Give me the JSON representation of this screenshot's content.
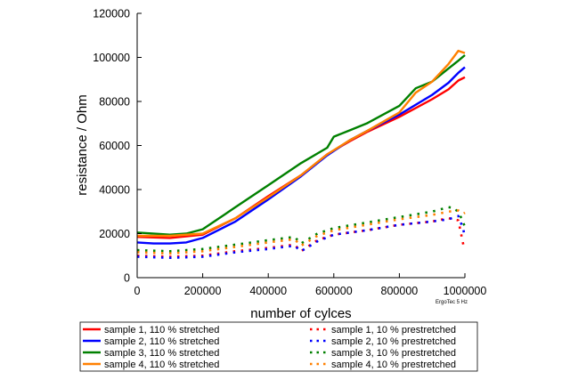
{
  "chart_data": {
    "type": "line",
    "xlabel": "number of cylces",
    "ylabel": "resistance / Ohm",
    "annotation": "ErgoTec 5 Hz",
    "xlim": [
      0,
      1000000
    ],
    "ylim": [
      0,
      120000
    ],
    "xticks": [
      0,
      200000,
      400000,
      600000,
      800000,
      1000000
    ],
    "yticks": [
      0,
      20000,
      40000,
      60000,
      80000,
      100000,
      120000
    ],
    "xtick_labels": [
      "0",
      "200000",
      "400000",
      "600000",
      "800000",
      "1000000"
    ],
    "ytick_labels": [
      "0",
      "20000",
      "40000",
      "60000",
      "80000",
      "100000",
      "120000"
    ],
    "grid": false,
    "legend_position": "bottom",
    "series": [
      {
        "name": "sample 1, 110 % stretched",
        "color": "#ff0000",
        "style": "solid",
        "x": [
          0,
          100000,
          200000,
          300000,
          400000,
          500000,
          580000,
          650000,
          700000,
          800000,
          900000,
          950000,
          980000,
          1000000
        ],
        "y": [
          18500,
          18000,
          19500,
          27000,
          37000,
          46500,
          56000,
          62000,
          66000,
          73000,
          81000,
          85500,
          89500,
          91000
        ]
      },
      {
        "name": "sample 2, 110 % stretched",
        "color": "#0000ff",
        "style": "solid",
        "x": [
          0,
          50000,
          100000,
          150000,
          200000,
          300000,
          400000,
          500000,
          580000,
          650000,
          700000,
          800000,
          900000,
          950000,
          980000,
          1000000
        ],
        "y": [
          16000,
          15500,
          15500,
          16000,
          18000,
          25500,
          35500,
          46000,
          55500,
          62500,
          66500,
          74000,
          83000,
          88500,
          93000,
          95500
        ]
      },
      {
        "name": "sample 3, 110 % stretched",
        "color": "#008000",
        "style": "solid",
        "x": [
          0,
          100000,
          150000,
          200000,
          300000,
          400000,
          500000,
          580000,
          600000,
          650000,
          700000,
          800000,
          850000,
          900000,
          950000,
          980000,
          1000000
        ],
        "y": [
          20500,
          19500,
          20000,
          22000,
          32000,
          42000,
          52000,
          59000,
          64000,
          67000,
          70000,
          78000,
          86000,
          89000,
          95000,
          98500,
          101000
        ]
      },
      {
        "name": "sample 4, 110 % stretched",
        "color": "#ff8000",
        "style": "solid",
        "x": [
          0,
          100000,
          200000,
          300000,
          400000,
          500000,
          580000,
          650000,
          700000,
          800000,
          850000,
          900000,
          950000,
          980000,
          1000000
        ],
        "y": [
          19000,
          19000,
          20000,
          27000,
          36500,
          46500,
          56000,
          62500,
          66500,
          75000,
          84000,
          89000,
          97000,
          103000,
          102000
        ]
      },
      {
        "name": "sample 1, 10 % prestretched",
        "color": "#ff0000",
        "style": "dotted",
        "x": [
          0,
          100000,
          200000,
          300000,
          400000,
          480000,
          500000,
          550000,
          600000,
          700000,
          800000,
          900000,
          950000,
          980000,
          995000,
          1000000
        ],
        "y": [
          10000,
          9500,
          10000,
          12000,
          13500,
          15000,
          12000,
          17000,
          19500,
          21500,
          24000,
          25500,
          27000,
          26000,
          15000,
          13500
        ]
      },
      {
        "name": "sample 2, 10 % prestretched",
        "color": "#0000ff",
        "style": "dotted",
        "x": [
          0,
          100000,
          200000,
          300000,
          400000,
          480000,
          500000,
          550000,
          600000,
          700000,
          800000,
          900000,
          950000,
          980000,
          995000,
          1000000
        ],
        "y": [
          9500,
          9000,
          9500,
          11500,
          13000,
          14500,
          12000,
          16500,
          19500,
          21500,
          24000,
          25500,
          26500,
          28000,
          22000,
          18000
        ]
      },
      {
        "name": "sample 3, 10 % prestretched",
        "color": "#008000",
        "style": "dotted",
        "x": [
          0,
          100000,
          200000,
          300000,
          400000,
          480000,
          500000,
          550000,
          600000,
          700000,
          800000,
          900000,
          950000,
          970000,
          990000,
          1000000
        ],
        "y": [
          12500,
          12000,
          13000,
          15000,
          17000,
          18500,
          15500,
          20000,
          22500,
          25000,
          27500,
          30000,
          32000,
          31500,
          27000,
          23000
        ]
      },
      {
        "name": "sample 4, 10 % prestretched",
        "color": "#ff8000",
        "style": "dotted",
        "x": [
          0,
          100000,
          200000,
          300000,
          400000,
          480000,
          500000,
          550000,
          600000,
          700000,
          800000,
          900000,
          950000,
          980000,
          995000,
          1000000
        ],
        "y": [
          11500,
          11000,
          12000,
          14000,
          16000,
          17500,
          14500,
          19000,
          21500,
          24000,
          26500,
          28500,
          30000,
          30500,
          29000,
          29500
        ]
      }
    ]
  }
}
